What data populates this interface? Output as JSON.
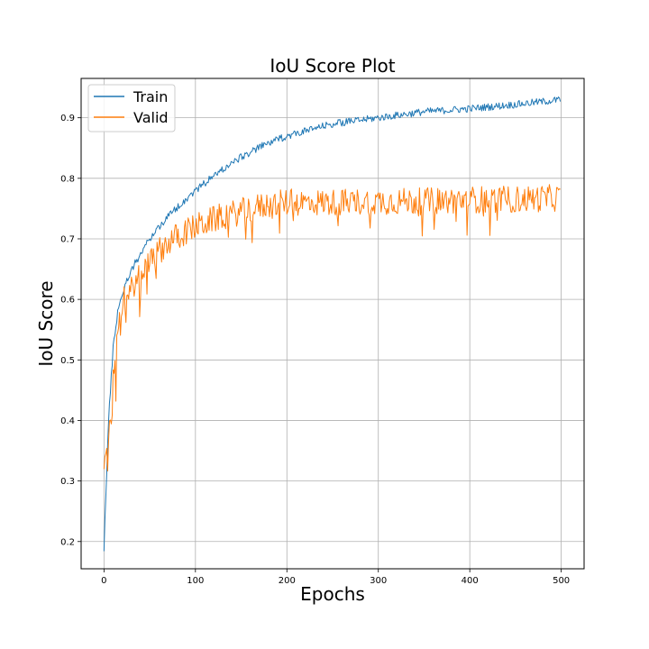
{
  "chart_data": {
    "type": "line",
    "title": "IoU Score Plot",
    "xlabel": "Epochs",
    "ylabel": "IoU Score",
    "xlim": [
      -25,
      525
    ],
    "ylim": [
      0.155,
      0.965
    ],
    "xticks": [
      0,
      100,
      200,
      300,
      400,
      500
    ],
    "yticks": [
      0.2,
      0.3,
      0.4,
      0.5,
      0.6,
      0.7,
      0.8,
      0.9
    ],
    "grid": true,
    "legend_position": "top-left",
    "epochs": 500,
    "series": [
      {
        "name": "Train",
        "color": "#1f77b4",
        "anchors_x": [
          0,
          5,
          10,
          15,
          20,
          30,
          40,
          50,
          60,
          75,
          100,
          125,
          150,
          175,
          200,
          250,
          300,
          350,
          400,
          450,
          500
        ],
        "anchors_y": [
          0.19,
          0.4,
          0.52,
          0.58,
          0.61,
          0.65,
          0.675,
          0.7,
          0.72,
          0.745,
          0.78,
          0.81,
          0.835,
          0.855,
          0.87,
          0.89,
          0.9,
          0.91,
          0.915,
          0.922,
          0.93
        ]
      },
      {
        "name": "Valid",
        "color": "#ff7f0e",
        "anchors_x": [
          0,
          5,
          10,
          15,
          20,
          30,
          40,
          50,
          60,
          75,
          100,
          125,
          150,
          175,
          200,
          250,
          300,
          350,
          400,
          450,
          500
        ],
        "anchors_y": [
          0.31,
          0.38,
          0.47,
          0.56,
          0.6,
          0.62,
          0.64,
          0.66,
          0.68,
          0.7,
          0.72,
          0.735,
          0.745,
          0.755,
          0.76,
          0.76,
          0.762,
          0.762,
          0.765,
          0.765,
          0.768
        ]
      }
    ]
  }
}
